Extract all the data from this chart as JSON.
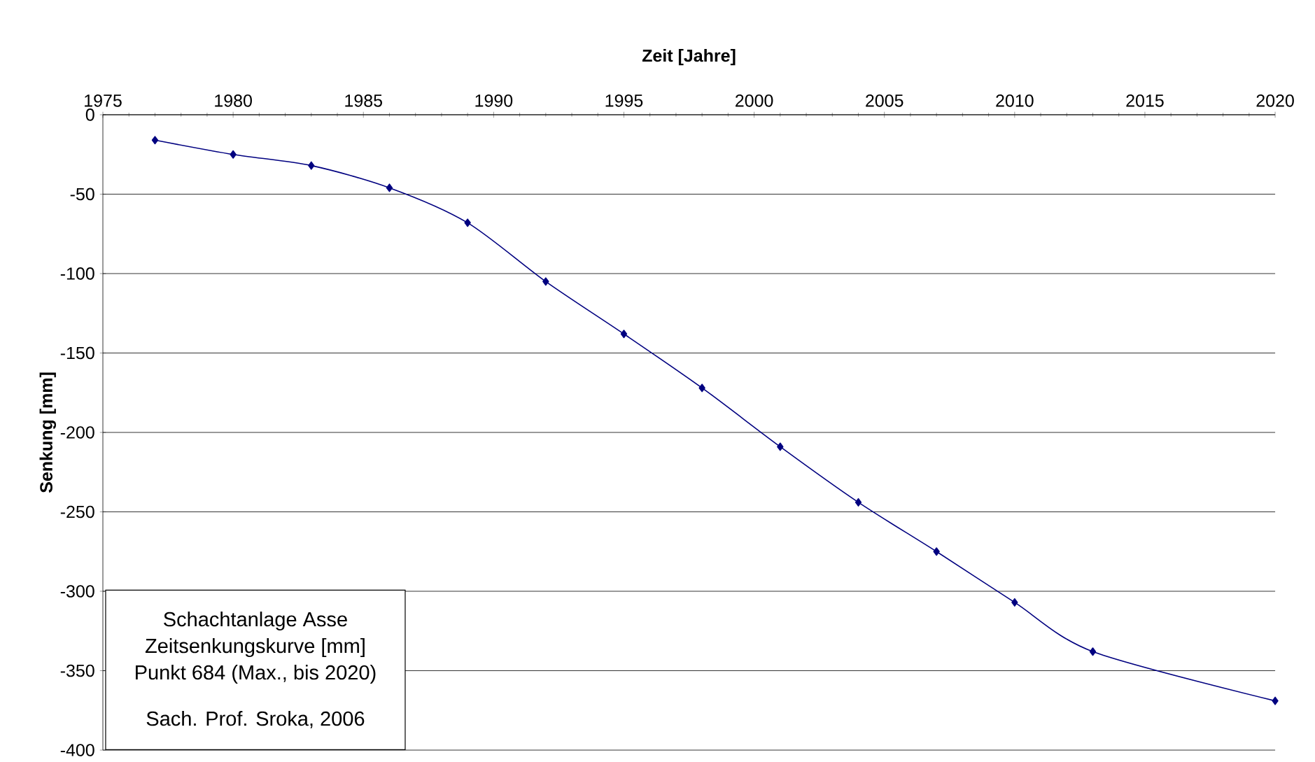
{
  "chart_data": {
    "type": "line",
    "xlabel": "Zeit [Jahre]",
    "ylabel": "Senkung [mm]",
    "x": [
      1977,
      1980,
      1983,
      1986,
      1989,
      1992,
      1995,
      1998,
      2001,
      2004,
      2007,
      2010,
      2013,
      2020
    ],
    "series": [
      {
        "color": "#000080",
        "values": [
          -16,
          -25,
          -32,
          -46,
          -68,
          -105,
          -138,
          -172,
          -209,
          -244,
          -275,
          -307,
          -338,
          -369
        ]
      }
    ],
    "xlim": [
      1975,
      2020
    ],
    "xticks": [
      1975,
      1980,
      1985,
      1990,
      1995,
      2000,
      2005,
      2010,
      2015,
      2020
    ],
    "ylim": [
      -400,
      0
    ],
    "yticks": [
      0,
      -50,
      -100,
      -150,
      -200,
      -250,
      -300,
      -350,
      -400
    ],
    "grid": "y",
    "marker": "diamond",
    "line_style": "solid",
    "annotations": [
      "Schachtanlage Asse",
      "Zeitsenkungskurve [mm]",
      "Punkt 684 (Max., bis 2020)",
      "Sach. Prof. Sroka, 2006"
    ]
  }
}
